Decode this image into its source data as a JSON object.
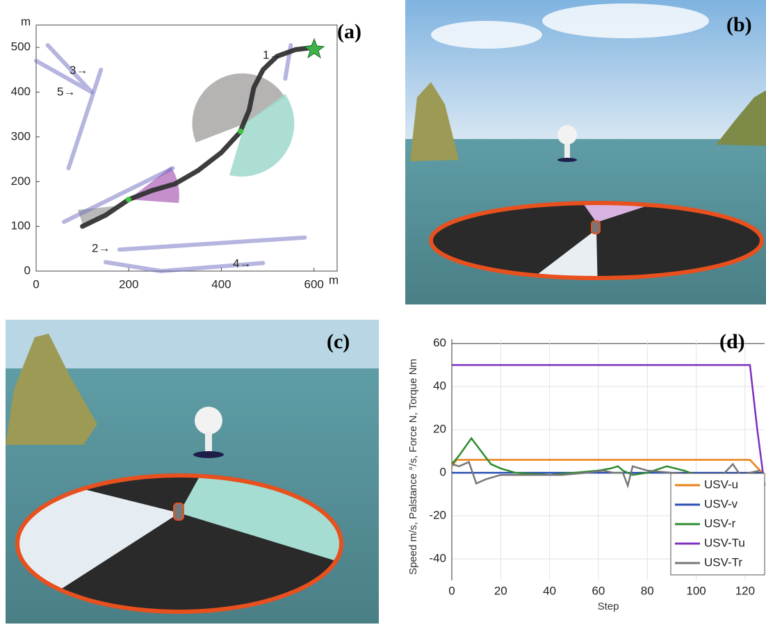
{
  "chart_data": [
    {
      "type": "trajectory",
      "label": "(a)",
      "xlabel": "m",
      "ylabel": "m",
      "xlim": [
        0,
        650
      ],
      "ylim": [
        0,
        550
      ],
      "xticks": [
        0,
        200,
        400,
        600
      ],
      "yticks": [
        0,
        100,
        200,
        300,
        400,
        500
      ],
      "series": [
        {
          "color": "#6b6bc0",
          "x": [
            550,
            538
          ],
          "values": [
            505,
            430
          ]
        },
        {
          "color": "#6b6bc0",
          "x": [
            180,
            580
          ],
          "values": [
            48,
            75
          ]
        },
        {
          "color": "#6b6bc0",
          "x": [
            140,
            70
          ],
          "values": [
            450,
            230
          ]
        },
        {
          "color": "#6b6bc0",
          "x": [
            150,
            270,
            490
          ],
          "values": [
            20,
            0,
            18
          ]
        },
        {
          "color": "#6b6bc0",
          "x": [
            25,
            120,
            0
          ],
          "values": [
            505,
            400,
            470
          ]
        },
        {
          "color": "#6b6bc0",
          "x": [
            60,
            295
          ],
          "values": [
            110,
            230
          ]
        },
        {
          "color": "#333333",
          "x": [
            100,
            150,
            200,
            250,
            300,
            350,
            400,
            440,
            460,
            470,
            490,
            520,
            560,
            600
          ],
          "values": [
            100,
            125,
            160,
            180,
            195,
            225,
            265,
            310,
            360,
            410,
            450,
            480,
            495,
            500
          ]
        }
      ],
      "annotations": [
        "1→",
        "2→",
        "3→",
        "4→",
        "5→"
      ]
    },
    {
      "type": "line",
      "label": "(d)",
      "xlabel": "Step",
      "ylabel": "Speed m/s, Palstance °/s, Force N, Torque Nm",
      "xlim": [
        0,
        128
      ],
      "ylim": [
        -50,
        62
      ],
      "xticks": [
        0,
        20,
        40,
        60,
        80,
        100,
        120
      ],
      "yticks": [
        -40,
        -20,
        0,
        20,
        40,
        60
      ],
      "grid": true,
      "legend": "lower right",
      "series": [
        {
          "name": "USV-u",
          "color": "#e8801a",
          "x": [
            0,
            2,
            122,
            127
          ],
          "values": [
            3,
            6,
            6,
            0
          ]
        },
        {
          "name": "USV-v",
          "color": "#2a4fb5",
          "x": [
            0,
            127
          ],
          "values": [
            0,
            0
          ]
        },
        {
          "name": "USV-r",
          "color": "#2e8b2e",
          "x": [
            0,
            3,
            8,
            12,
            16,
            20,
            26,
            40,
            50,
            60,
            65,
            68,
            70,
            74,
            80,
            88,
            95,
            100,
            110,
            115,
            120,
            124,
            127
          ],
          "values": [
            4,
            8,
            16,
            10,
            4,
            2,
            0,
            -1,
            0,
            1,
            2,
            3,
            1,
            -1,
            0,
            3,
            1,
            -1,
            -2,
            -3,
            -1,
            -2,
            0
          ]
        },
        {
          "name": "USV-Tu",
          "color": "#7b2fbf",
          "x": [
            0,
            122,
            125,
            128
          ],
          "values": [
            50,
            50,
            20,
            -6
          ]
        },
        {
          "name": "USV-Tr",
          "color": "#777777",
          "x": [
            0,
            3,
            7,
            10,
            14,
            20,
            30,
            45,
            55,
            62,
            66,
            70,
            72,
            74,
            80,
            90,
            100,
            110,
            115,
            118,
            122,
            126
          ],
          "values": [
            4,
            3,
            5,
            -5,
            -3,
            -1,
            -1,
            -1,
            0,
            1,
            0,
            0,
            -6,
            3,
            1,
            0,
            -1,
            -2,
            4,
            -1,
            0,
            1
          ]
        }
      ]
    }
  ],
  "panels": [
    {
      "label": "(b)"
    },
    {
      "label": "(c)"
    }
  ]
}
